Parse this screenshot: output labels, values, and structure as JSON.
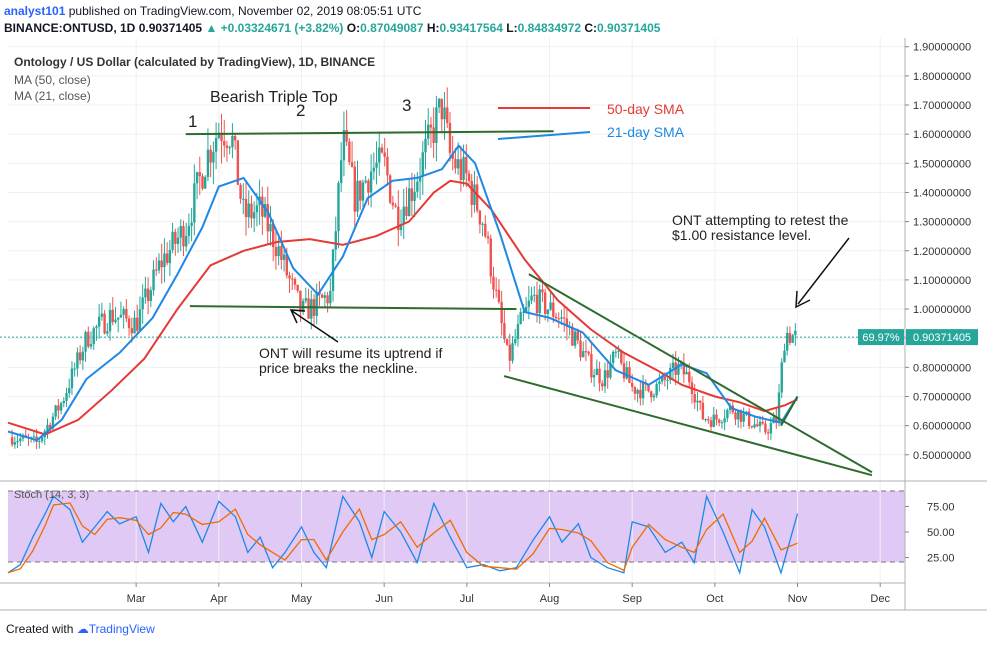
{
  "header": {
    "author": "analyst101",
    "published": "published on TradingView.com, November 02, 2019 08:05:51 UTC",
    "symbol": "BINANCE:ONTUSD, 1D",
    "last": "0.90371405",
    "change": "▲ +0.03324671 (+3.82%)",
    "o_label": "O:",
    "o": "0.87049087",
    "h_label": "H:",
    "h": "0.93417564",
    "l_label": "L:",
    "l": "0.84834972",
    "c_label": "C:",
    "c": "0.90371405"
  },
  "legend": {
    "title": "Ontology / US Dollar (calculated by TradingView), 1D, BINANCE",
    "ma50": "MA (50, close)",
    "ma21": "MA (21, close)"
  },
  "annotations": {
    "pattern": "Bearish Triple Top",
    "top1": "1",
    "top2": "2",
    "top3": "3",
    "sma50_label": "50-day SMA",
    "sma21_label": "21-day SMA",
    "retest_line1": "ONT attempting to retest the",
    "retest_line2": "$1.00 resistance level.",
    "neck_line1": "ONT will resume its uptrend if",
    "neck_line2": "price breaks the neckline."
  },
  "price_tags": {
    "percent": "69.97%",
    "price": "0.90371405"
  },
  "stoch_label": "Stoch (14, 3, 3)",
  "footer": {
    "created": "Created with",
    "brand": "TradingView"
  },
  "colors": {
    "up": "#26a69a",
    "down": "#ef5350",
    "ma50": "#e53935",
    "ma21": "#1e88e5",
    "trend": "#2e6b2e",
    "stoch_bg": "#e1c9f5",
    "price_tag": "#26a69a"
  },
  "chart_data": {
    "type": "candlestick",
    "title": "Ontology / US Dollar (calculated by TradingView), 1D, BINANCE",
    "price_axis": [
      "1.90000000",
      "1.80000000",
      "1.70000000",
      "1.60000000",
      "1.50000000",
      "1.40000000",
      "1.30000000",
      "1.20000000",
      "1.10000000",
      "1.00000000",
      "0.90000000",
      "0.80000000",
      "0.70000000",
      "0.60000000",
      "0.50000000"
    ],
    "stoch_axis": [
      "75.00",
      "50.00",
      "25.00"
    ],
    "time_axis": [
      "Mar",
      "Apr",
      "May",
      "Jun",
      "Jul",
      "Aug",
      "Sep",
      "Oct",
      "Nov",
      "Dec"
    ],
    "xlim_months": [
      1.45,
      12.3
    ],
    "ylim": [
      0.41,
      1.93
    ],
    "stoch_ylim": [
      0,
      100
    ],
    "close_path": [
      [
        1.5,
        0.56
      ],
      [
        1.8,
        0.54
      ],
      [
        2.1,
        0.68
      ],
      [
        2.4,
        0.9
      ],
      [
        2.7,
        0.98
      ],
      [
        3.0,
        0.95
      ],
      [
        3.3,
        1.16
      ],
      [
        3.6,
        1.28
      ],
      [
        3.85,
        1.52
      ],
      [
        4.0,
        1.62
      ],
      [
        4.15,
        1.6
      ],
      [
        4.3,
        1.32
      ],
      [
        4.5,
        1.34
      ],
      [
        4.7,
        1.22
      ],
      [
        4.85,
        1.1
      ],
      [
        5.0,
        0.99
      ],
      [
        5.15,
        1.01
      ],
      [
        5.35,
        1.05
      ],
      [
        5.5,
        1.58
      ],
      [
        5.65,
        1.38
      ],
      [
        5.85,
        1.48
      ],
      [
        6.0,
        1.5
      ],
      [
        6.15,
        1.32
      ],
      [
        6.35,
        1.42
      ],
      [
        6.55,
        1.58
      ],
      [
        6.7,
        1.7
      ],
      [
        6.8,
        1.52
      ],
      [
        7.0,
        1.45
      ],
      [
        7.2,
        1.3
      ],
      [
        7.35,
        1.05
      ],
      [
        7.5,
        0.82
      ],
      [
        7.65,
        0.95
      ],
      [
        7.8,
        1.04
      ],
      [
        8.0,
        1.0
      ],
      [
        8.15,
        0.97
      ],
      [
        8.3,
        0.9
      ],
      [
        8.5,
        0.8
      ],
      [
        8.65,
        0.76
      ],
      [
        8.8,
        0.84
      ],
      [
        9.0,
        0.73
      ],
      [
        9.2,
        0.72
      ],
      [
        9.35,
        0.74
      ],
      [
        9.55,
        0.8
      ],
      [
        9.7,
        0.76
      ],
      [
        9.85,
        0.63
      ],
      [
        10.0,
        0.62
      ],
      [
        10.2,
        0.66
      ],
      [
        10.4,
        0.62
      ],
      [
        10.6,
        0.58
      ],
      [
        10.75,
        0.62
      ],
      [
        10.85,
        0.92
      ],
      [
        11.0,
        0.9
      ]
    ],
    "series": [
      {
        "name": "MA (50, close)",
        "x": [
          1.45,
          1.9,
          2.3,
          2.7,
          3.1,
          3.5,
          3.9,
          4.3,
          4.7,
          5.1,
          5.5,
          5.9,
          6.3,
          6.6,
          6.8,
          7.0,
          7.3,
          7.7,
          8.1,
          8.5,
          8.9,
          9.3,
          9.6,
          10.0,
          10.3,
          10.6,
          10.85,
          11.0
        ],
        "values": [
          0.61,
          0.57,
          0.62,
          0.72,
          0.83,
          1.0,
          1.15,
          1.2,
          1.23,
          1.24,
          1.22,
          1.25,
          1.3,
          1.4,
          1.44,
          1.43,
          1.34,
          1.17,
          1.03,
          0.93,
          0.85,
          0.79,
          0.74,
          0.7,
          0.68,
          0.65,
          0.67,
          0.69
        ]
      },
      {
        "name": "MA (21, close)",
        "x": [
          1.45,
          1.8,
          2.1,
          2.4,
          2.8,
          3.2,
          3.5,
          3.8,
          4.0,
          4.3,
          4.6,
          4.9,
          5.2,
          5.5,
          5.8,
          6.1,
          6.4,
          6.7,
          6.9,
          7.1,
          7.4,
          7.7,
          8.0,
          8.4,
          8.8,
          9.2,
          9.6,
          9.9,
          10.2,
          10.5,
          10.8,
          11.0
        ],
        "values": [
          0.58,
          0.55,
          0.62,
          0.76,
          0.85,
          0.97,
          1.12,
          1.28,
          1.42,
          1.45,
          1.33,
          1.14,
          1.05,
          1.18,
          1.38,
          1.44,
          1.45,
          1.48,
          1.56,
          1.5,
          1.26,
          0.99,
          0.97,
          0.92,
          0.79,
          0.74,
          0.81,
          0.78,
          0.66,
          0.63,
          0.61,
          0.7
        ]
      },
      {
        "name": "Stoch (14, 3, 3)",
        "x": [
          1.45,
          1.6,
          1.75,
          1.9,
          2.0,
          2.2,
          2.35,
          2.5,
          2.65,
          2.8,
          3.0,
          3.15,
          3.3,
          3.45,
          3.6,
          3.8,
          4.0,
          4.2,
          4.35,
          4.5,
          4.65,
          4.8,
          5.0,
          5.15,
          5.3,
          5.5,
          5.7,
          5.85,
          6.0,
          6.2,
          6.4,
          6.6,
          6.8,
          7.0,
          7.2,
          7.4,
          7.6,
          7.8,
          8.0,
          8.15,
          8.35,
          8.5,
          8.7,
          8.9,
          9.0,
          9.2,
          9.4,
          9.6,
          9.75,
          9.9,
          10.1,
          10.3,
          10.45,
          10.6,
          10.8,
          11.0
        ],
        "values": [
          10,
          18,
          45,
          68,
          85,
          72,
          40,
          55,
          70,
          58,
          65,
          30,
          78,
          60,
          75,
          40,
          80,
          65,
          30,
          45,
          15,
          30,
          55,
          30,
          15,
          85,
          60,
          25,
          70,
          50,
          20,
          78,
          45,
          15,
          18,
          12,
          15,
          42,
          65,
          40,
          58,
          25,
          15,
          10,
          60,
          55,
          30,
          40,
          20,
          85,
          50,
          10,
          72,
          55,
          10,
          68
        ]
      }
    ],
    "trendlines": [
      {
        "name": "triple-top-resistance",
        "from": [
          3.6,
          1.6
        ],
        "to": [
          8.05,
          1.61
        ]
      },
      {
        "name": "neckline",
        "from": [
          3.65,
          1.01
        ],
        "to": [
          7.6,
          1.0
        ]
      },
      {
        "name": "wedge-upper",
        "from": [
          7.75,
          1.12
        ],
        "to": [
          11.9,
          0.44
        ]
      },
      {
        "name": "wedge-lower",
        "from": [
          7.45,
          0.77
        ],
        "to": [
          11.9,
          0.43
        ]
      },
      {
        "name": "breakout",
        "from": [
          10.8,
          0.6
        ],
        "to": [
          11.0,
          0.7
        ]
      }
    ],
    "grid": true,
    "legend_position": "top-left",
    "last_price": 0.90371405
  }
}
